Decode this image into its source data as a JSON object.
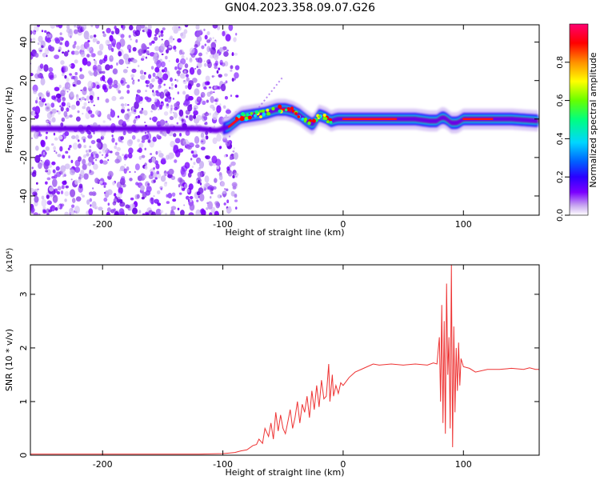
{
  "title": "GN04.2023.358.09.07.G26",
  "colormap": [
    "#ffffff",
    "#b89ae8",
    "#7b00ff",
    "#2a00ff",
    "#0060ff",
    "#00d6ff",
    "#00ff80",
    "#66ff00",
    "#ffff00",
    "#ff9000",
    "#ff0000",
    "#ff0070"
  ],
  "chart_data": [
    {
      "type": "heatmap",
      "xlabel": "Height of straight line (km)",
      "ylabel": "Frequency (Hz)",
      "xlim": [
        -260,
        163
      ],
      "ylim": [
        -50,
        49
      ],
      "xticks": [
        -200,
        -100,
        0,
        100
      ],
      "yticks": [
        -40,
        -20,
        0,
        20,
        40
      ],
      "grid": false,
      "colorbar": {
        "label": "Normalized spectral amplitude",
        "range": [
          0,
          1
        ],
        "ticks": [
          0.0,
          0.2,
          0.4,
          0.6,
          0.8
        ]
      },
      "ridge": {
        "x": [
          -260,
          -240,
          -220,
          -200,
          -180,
          -160,
          -140,
          -120,
          -105,
          -100,
          -95,
          -85,
          -75,
          -65,
          -55,
          -48,
          -42,
          -36,
          -30,
          -25,
          -20,
          -15,
          -10,
          -5,
          0,
          20,
          40,
          60,
          72,
          78,
          80,
          83,
          86,
          90,
          95,
          100,
          120,
          140,
          163
        ],
        "freq": [
          -5,
          -5,
          -5,
          -5,
          -5,
          -5,
          -5,
          -5,
          -6,
          -5,
          -4,
          1,
          2,
          3,
          5,
          5,
          4,
          2,
          -1,
          -3,
          2,
          1,
          -1,
          0,
          0,
          0,
          0,
          0,
          -1,
          -1,
          0,
          1,
          0,
          -2,
          -2,
          0,
          0,
          0,
          -1
        ]
      }
    },
    {
      "type": "line",
      "xlabel": "Height of straight line (km)",
      "ylabel": "SNR (10 * v/v)",
      "yscale_note": "(x10⁴)",
      "xlim": [
        -260,
        163
      ],
      "ylim": [
        0,
        3.55
      ],
      "xticks": [
        -200,
        -100,
        0,
        100
      ],
      "yticks": [
        0,
        1,
        2,
        3
      ],
      "grid": false,
      "color": "#ee3333",
      "series": [
        {
          "x": [
            -260,
            -240,
            -220,
            -200,
            -180,
            -160,
            -140,
            -120,
            -100,
            -95,
            -90,
            -85,
            -80,
            -75,
            -72,
            -70,
            -67,
            -65,
            -62,
            -60,
            -58,
            -56,
            -54,
            -52,
            -50,
            -48,
            -46,
            -44,
            -42,
            -40,
            -38,
            -36,
            -34,
            -32,
            -30,
            -28,
            -26,
            -24,
            -22,
            -20,
            -18,
            -16,
            -14,
            -12,
            -11,
            -10,
            -9,
            -8,
            -6,
            -4,
            -2,
            0,
            5,
            10,
            15,
            20,
            25,
            30,
            40,
            50,
            60,
            70,
            75,
            78,
            80,
            81,
            82,
            83,
            84,
            85,
            86,
            87,
            88,
            89,
            90,
            91,
            92,
            93,
            94,
            95,
            96,
            97,
            98,
            100,
            105,
            110,
            120,
            130,
            140,
            150,
            155,
            160,
            163
          ],
          "y": [
            0.02,
            0.02,
            0.02,
            0.02,
            0.02,
            0.02,
            0.02,
            0.02,
            0.03,
            0.04,
            0.05,
            0.08,
            0.1,
            0.18,
            0.2,
            0.3,
            0.22,
            0.5,
            0.35,
            0.6,
            0.3,
            0.8,
            0.45,
            0.75,
            0.5,
            0.4,
            0.62,
            0.85,
            0.5,
            0.7,
            1.0,
            0.6,
            0.95,
            0.8,
            1.1,
            0.7,
            1.2,
            0.85,
            1.3,
            0.9,
            1.4,
            1.05,
            1.1,
            1.7,
            1.0,
            1.25,
            1.5,
            1.1,
            1.3,
            1.15,
            1.35,
            1.3,
            1.45,
            1.55,
            1.6,
            1.65,
            1.7,
            1.68,
            1.7,
            1.68,
            1.7,
            1.68,
            1.72,
            1.7,
            2.2,
            1.0,
            2.8,
            0.6,
            2.5,
            0.4,
            3.2,
            1.5,
            2.2,
            0.5,
            3.55,
            0.15,
            2.4,
            0.8,
            2.0,
            1.2,
            2.1,
            1.3,
            1.8,
            1.65,
            1.62,
            1.55,
            1.6,
            1.6,
            1.62,
            1.6,
            1.63,
            1.6,
            1.6
          ]
        }
      ]
    }
  ]
}
